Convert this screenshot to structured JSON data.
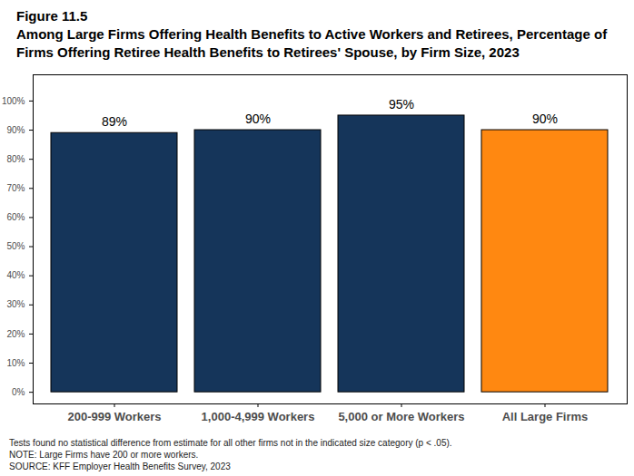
{
  "chart_data": {
    "type": "bar",
    "title": "Figure 11.5",
    "subtitle": "Among Large Firms Offering Health Benefits to Active Workers and Retirees, Percentage of Firms Offering Retiree Health Benefits to Retirees' Spouse, by Firm Size, 2023",
    "categories": [
      "200-999 Workers",
      "1,000-4,999 Workers",
      "5,000 or More Workers",
      "All Large Firms"
    ],
    "values": [
      89,
      90,
      95,
      90
    ],
    "value_labels": [
      "89%",
      "90%",
      "95%",
      "90%"
    ],
    "colors": [
      "#15355a",
      "#15355a",
      "#15355a",
      "#ff8811"
    ],
    "data_labels": true,
    "ylim": [
      -4,
      109
    ],
    "yticks": [
      {
        "value": 0,
        "label": "0%"
      },
      {
        "value": 10,
        "label": "10%"
      },
      {
        "value": 20,
        "label": "20%"
      },
      {
        "value": 30,
        "label": "30%"
      },
      {
        "value": 40,
        "label": "40%"
      },
      {
        "value": 50,
        "label": "50%"
      },
      {
        "value": 60,
        "label": "60%"
      },
      {
        "value": 70,
        "label": "70%"
      },
      {
        "value": 80,
        "label": "80%"
      },
      {
        "value": 90,
        "label": "90%"
      },
      {
        "value": 100,
        "label": "100%"
      }
    ],
    "grid": false,
    "notes": [
      "Tests found no statistical difference from estimate for all other firms not in the indicated size category (p < .05).",
      "NOTE: Large Firms have 200 or more workers.",
      "SOURCE: KFF Employer Health Benefits Survey, 2023"
    ]
  }
}
